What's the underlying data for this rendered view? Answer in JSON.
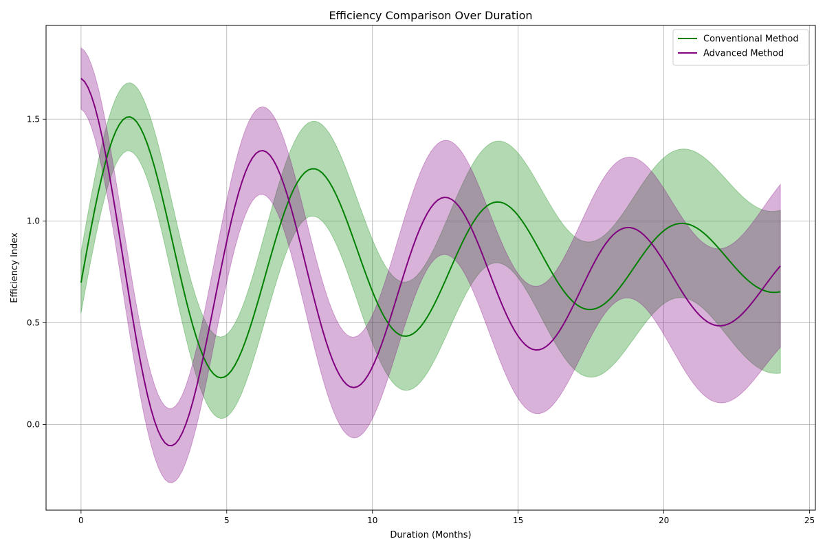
{
  "chart_data": {
    "type": "line",
    "title": "Efficiency Comparison Over Duration",
    "xlabel": "Duration (Months)",
    "ylabel": "Efficiency Index",
    "xlim": [
      -1.2,
      25.2
    ],
    "ylim": [
      -0.42,
      1.96
    ],
    "xticks": [
      0,
      5,
      10,
      15,
      20,
      25
    ],
    "yticks": [
      0.0,
      0.5,
      1.0,
      1.5
    ],
    "xtick_labels": [
      "0",
      "5",
      "10",
      "15",
      "20",
      "25"
    ],
    "ytick_labels": [
      "0.0",
      "0.5",
      "1.0",
      "1.5"
    ],
    "grid": true,
    "legend_position": "top-right",
    "x_range": [
      0,
      24
    ],
    "series": [
      {
        "name": "Conventional Method",
        "color": "#008000",
        "band_color": "#008000",
        "band_halfwidth": [
          0.15,
          0.4
        ],
        "model": {
          "offset": 0.8,
          "amplitude": 0.8,
          "decay": 0.07,
          "omega": 0.993,
          "phase": -1.7
        }
      },
      {
        "name": "Advanced Method",
        "color": "#800080",
        "band_color": "#800080",
        "band_halfwidth": [
          0.15,
          0.4
        ],
        "model": {
          "offset": 0.7,
          "amplitude": 1.0,
          "decay": 0.07,
          "omega": 1.0,
          "phase": 0.0
        }
      }
    ]
  }
}
